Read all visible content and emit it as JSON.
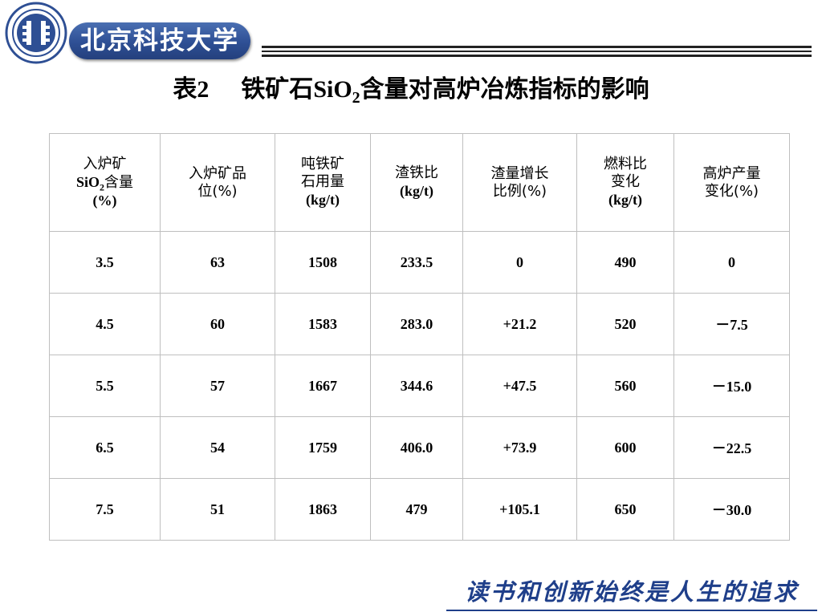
{
  "header": {
    "logo_name": "university-seal",
    "banner_text": "北京科技大学",
    "accent_color": "#2e4f94"
  },
  "title": {
    "prefix": "表",
    "number": "2",
    "text_before": "铁矿石",
    "formula_main": "SiO",
    "formula_sub": "2",
    "text_after": "含量对高炉冶炼指标的影响"
  },
  "table": {
    "headers": [
      {
        "line1": "入炉矿",
        "chem": "SiO",
        "chem_sub": "2",
        "line2_tail": "含量",
        "line3": "(%)"
      },
      {
        "line1": "入炉矿品",
        "line2": "位(%)"
      },
      {
        "line1": "吨铁矿",
        "line2": "石用量",
        "line3": "(kg/t)"
      },
      {
        "line1": "渣铁比",
        "line2": "(kg/t)"
      },
      {
        "line1": "渣量增长",
        "line2": "比例(%)"
      },
      {
        "line1": "燃料比",
        "line2": "变化",
        "line3": "(kg/t)"
      },
      {
        "line1": "高炉产量",
        "line2": "变化(%)"
      }
    ],
    "rows": [
      [
        "3.5",
        "63",
        "1508",
        "233.5",
        "0",
        "490",
        "0"
      ],
      [
        "4.5",
        "60",
        "1583",
        "283.0",
        "+21.2",
        "520",
        "－7.5"
      ],
      [
        "5.5",
        "57",
        "1667",
        "344.6",
        "+47.5",
        "560",
        "－15.0"
      ],
      [
        "6.5",
        "54",
        "1759",
        "406.0",
        "+73.9",
        "600",
        "－22.5"
      ],
      [
        "7.5",
        "51",
        "1863",
        "479",
        "+105.1",
        "650",
        "－30.0"
      ]
    ]
  },
  "footer": {
    "slogan": "读书和创新始终是人生的追求",
    "slogan_color": "#1f3f8a"
  }
}
